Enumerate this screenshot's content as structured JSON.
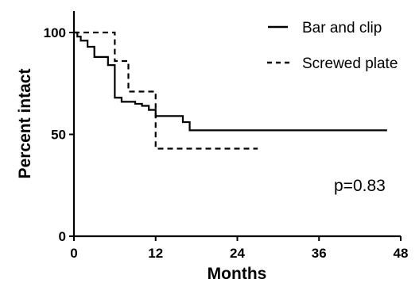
{
  "chart_data": {
    "type": "line",
    "xlabel": "Months",
    "ylabel": "Percent intact",
    "xlim": [
      0,
      48
    ],
    "ylim": [
      0,
      100
    ],
    "x_ticks": [
      "0",
      "12",
      "24",
      "36",
      "48"
    ],
    "y_ticks": [
      "0",
      "50",
      "100"
    ],
    "annotation": "p=0.83",
    "legend_position": "top-right",
    "grid": false,
    "series": [
      {
        "name": "Bar and clip",
        "style": "solid",
        "color": "#000000",
        "steps": [
          [
            0,
            100
          ],
          [
            0.5,
            98
          ],
          [
            1,
            96
          ],
          [
            2,
            93
          ],
          [
            3,
            88
          ],
          [
            5,
            84
          ],
          [
            6,
            68
          ],
          [
            7,
            66
          ],
          [
            9,
            65
          ],
          [
            10,
            64
          ],
          [
            11,
            62
          ],
          [
            12,
            59
          ],
          [
            16,
            56
          ],
          [
            17,
            52
          ],
          [
            46,
            52
          ]
        ]
      },
      {
        "name": "Screwed plate",
        "style": "dashed",
        "color": "#000000",
        "steps": [
          [
            0,
            100
          ],
          [
            6,
            86
          ],
          [
            8,
            71
          ],
          [
            12,
            43
          ],
          [
            27,
            43
          ]
        ]
      }
    ]
  }
}
